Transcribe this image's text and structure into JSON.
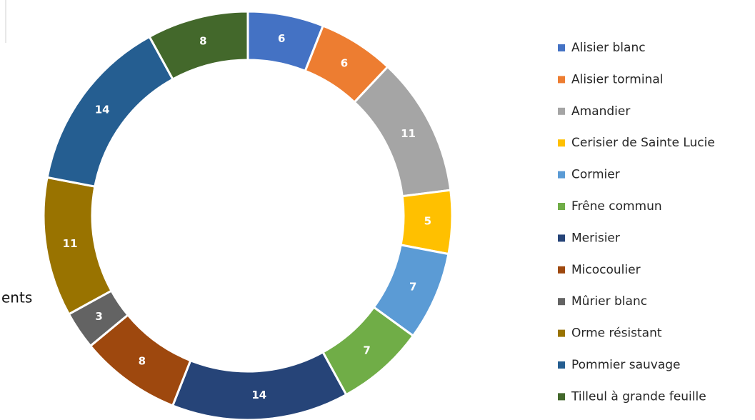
{
  "chart_data": {
    "type": "donut",
    "categories": [
      "Alisier blanc",
      "Alisier torminal",
      "Amandier",
      "Cerisier de Sainte Lucie",
      "Cormier",
      "Frêne commun",
      "Merisier",
      "Micocoulier",
      "Mûrier blanc",
      "Orme résistant",
      "Pommier sauvage",
      "Tilleul à grande feuille"
    ],
    "values": [
      6,
      6,
      11,
      5,
      7,
      7,
      14,
      8,
      3,
      11,
      14,
      8
    ],
    "colors": [
      "#4472c4",
      "#ed7d31",
      "#a5a5a5",
      "#ffc000",
      "#5b9bd5",
      "#70ad47",
      "#264478",
      "#9e480e",
      "#636363",
      "#997300",
      "#255e91",
      "#43682b"
    ],
    "legend": "right"
  },
  "side_text": "ents"
}
